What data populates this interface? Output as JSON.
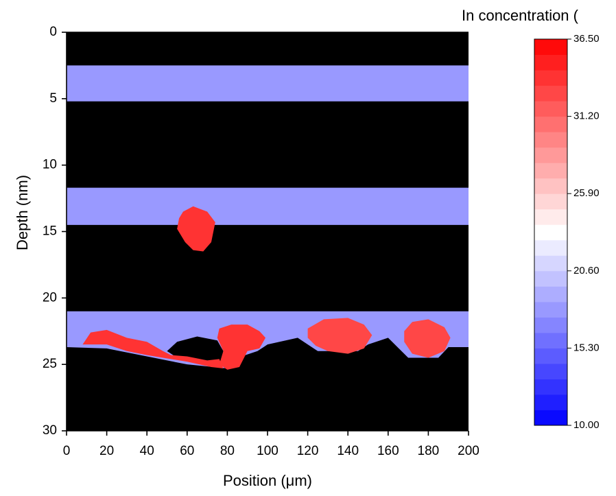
{
  "chart_data": {
    "type": "heatmap",
    "title": "In concentration (",
    "xlabel": "Position (μm)",
    "ylabel": "Depth (nm)",
    "xlim": [
      0,
      200
    ],
    "ylim": [
      30,
      0
    ],
    "xticks": [
      0,
      20,
      40,
      60,
      80,
      100,
      120,
      140,
      160,
      180,
      200
    ],
    "yticks": [
      0,
      5,
      10,
      15,
      20,
      25,
      30
    ],
    "zlim": [
      10,
      36.5
    ],
    "zticks": [
      {
        "value": 10,
        "label": "10.00"
      },
      {
        "value": 15.3,
        "label": "15.30"
      },
      {
        "value": 20.6,
        "label": "20.60"
      },
      {
        "value": 25.9,
        "label": "25.90"
      },
      {
        "value": 31.2,
        "label": "31.20"
      },
      {
        "value": 36.5,
        "label": "36.50"
      }
    ],
    "colormap": [
      "#0000ff",
      "#ffffff",
      "#ff0000"
    ],
    "levels": 25,
    "background": "#000000",
    "regions": [
      {
        "points": [
          [
            0,
            2.5
          ],
          [
            200,
            2.5
          ],
          [
            200,
            5.2
          ],
          [
            0,
            5.2
          ]
        ],
        "value": 18
      },
      {
        "points": [
          [
            0,
            11.7
          ],
          [
            200,
            11.7
          ],
          [
            200,
            14.5
          ],
          [
            0,
            14.5
          ]
        ],
        "value": 18
      },
      {
        "points": [
          [
            0,
            21
          ],
          [
            200,
            21
          ],
          [
            200,
            23.7
          ],
          [
            190,
            23.7
          ],
          [
            185,
            24.5
          ],
          [
            170,
            24.5
          ],
          [
            160,
            23
          ],
          [
            150,
            23.5
          ],
          [
            145,
            24
          ],
          [
            125,
            24
          ],
          [
            115,
            23
          ],
          [
            100,
            23.5
          ],
          [
            95,
            24
          ],
          [
            85,
            24.5
          ],
          [
            80,
            25.3
          ],
          [
            60,
            25
          ],
          [
            40,
            24.4
          ],
          [
            20,
            23.8
          ],
          [
            0,
            23.7
          ]
        ],
        "value": 18
      },
      {
        "points": [
          [
            50,
            24
          ],
          [
            55,
            23.3
          ],
          [
            65,
            22.9
          ],
          [
            75,
            23.2
          ],
          [
            78,
            24
          ],
          [
            77,
            24.8
          ],
          [
            65,
            24.9
          ],
          [
            55,
            24.5
          ]
        ],
        "value": null
      },
      {
        "points": [
          [
            58,
            13.5
          ],
          [
            63,
            13.1
          ],
          [
            70,
            13.5
          ],
          [
            74,
            14.3
          ],
          [
            72,
            15.8
          ],
          [
            68,
            16.5
          ],
          [
            63,
            16.4
          ],
          [
            59,
            15.8
          ],
          [
            55,
            14.8
          ],
          [
            56,
            14
          ]
        ],
        "value": 34
      },
      {
        "points": [
          [
            8,
            23.5
          ],
          [
            12,
            22.6
          ],
          [
            20,
            22.4
          ],
          [
            30,
            23
          ],
          [
            40,
            23.3
          ],
          [
            48,
            24
          ],
          [
            52,
            24.3
          ],
          [
            60,
            24.4
          ],
          [
            70,
            24.7
          ],
          [
            76,
            24.6
          ],
          [
            78,
            25.3
          ],
          [
            72,
            25.2
          ],
          [
            60,
            24.8
          ],
          [
            48,
            24.5
          ],
          [
            40,
            24.3
          ],
          [
            30,
            24
          ],
          [
            20,
            23.5
          ],
          [
            12,
            23.5
          ]
        ],
        "value": 34
      },
      {
        "points": [
          [
            76,
            22.3
          ],
          [
            82,
            22
          ],
          [
            90,
            22
          ],
          [
            96,
            22.5
          ],
          [
            99,
            23
          ],
          [
            96,
            23.8
          ],
          [
            90,
            24
          ],
          [
            86,
            25.2
          ],
          [
            80,
            25.4
          ],
          [
            76,
            25
          ],
          [
            78,
            24
          ],
          [
            75,
            23
          ]
        ],
        "value": 34
      },
      {
        "points": [
          [
            120,
            22.3
          ],
          [
            128,
            21.6
          ],
          [
            140,
            21.5
          ],
          [
            148,
            22
          ],
          [
            152,
            22.8
          ],
          [
            148,
            23.8
          ],
          [
            140,
            24.2
          ],
          [
            130,
            24
          ],
          [
            124,
            23.6
          ],
          [
            120,
            23
          ]
        ],
        "value": 33
      },
      {
        "points": [
          [
            168,
            22.5
          ],
          [
            172,
            21.8
          ],
          [
            180,
            21.6
          ],
          [
            188,
            22.2
          ],
          [
            191,
            23
          ],
          [
            188,
            24
          ],
          [
            180,
            24.5
          ],
          [
            172,
            24.2
          ],
          [
            168,
            23.3
          ]
        ],
        "value": 33
      }
    ]
  }
}
